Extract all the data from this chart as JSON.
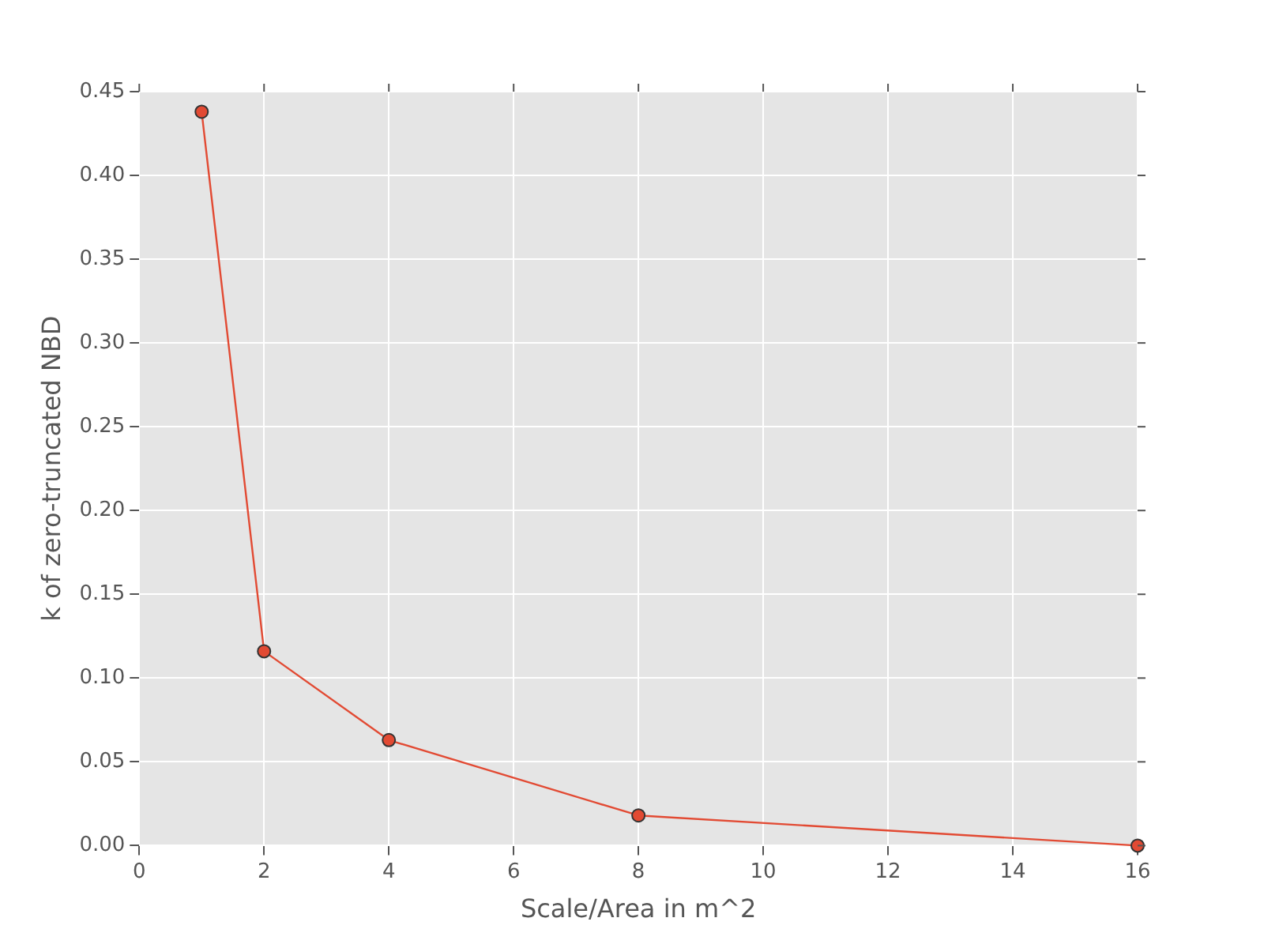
{
  "chart_data": {
    "type": "line",
    "xlabel": "Scale/Area in m^2",
    "ylabel": "k of zero-truncated NBD",
    "x": [
      1,
      2,
      4,
      8,
      16
    ],
    "series": [
      {
        "color": "#e24a33",
        "values": [
          0.438,
          0.116,
          0.063,
          0.018,
          0.0
        ]
      }
    ],
    "xlim": [
      0,
      16
    ],
    "xticks": [
      0,
      2,
      4,
      6,
      8,
      10,
      12,
      14,
      16
    ],
    "ylim": [
      0,
      0.45
    ],
    "yticks": [
      {
        "value": 0,
        "label": "0.00"
      },
      {
        "value": 0.05,
        "label": "0.05"
      },
      {
        "value": 0.1,
        "label": "0.10"
      },
      {
        "value": 0.15,
        "label": "0.15"
      },
      {
        "value": 0.2,
        "label": "0.20"
      },
      {
        "value": 0.25,
        "label": "0.25"
      },
      {
        "value": 0.3,
        "label": "0.30"
      },
      {
        "value": 0.35,
        "label": "0.35"
      },
      {
        "value": 0.4,
        "label": "0.40"
      },
      {
        "value": 0.45,
        "label": "0.45"
      }
    ],
    "grid": true,
    "marker": "circle",
    "line_style": "solid"
  }
}
